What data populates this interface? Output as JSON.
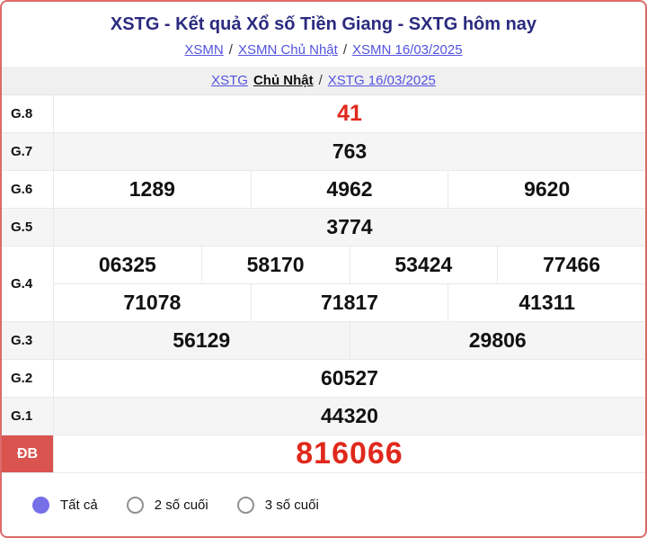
{
  "colors": {
    "card_border": "#dd6a6a",
    "title_navy": "#2b2b80",
    "link_blue": "#5352e0",
    "result_red": "#e0281c",
    "db_label_bg": "#d9534f",
    "row_alt_gray": "#f5f5f5",
    "band_gray": "#f0f0f0",
    "radio_selected": "#756fe8"
  },
  "header": {
    "title": "XSTG - Kết quả Xổ số Tiền Giang - SXTG hôm nay",
    "separator": "/",
    "breadcrumb1": {
      "links": [
        "XSMN",
        "XSMN Chủ Nhật",
        "XSMN 16/03/2025"
      ]
    },
    "breadcrumb2": {
      "link1": "XSTG",
      "current": "Chủ Nhật",
      "link2": "XSTG 16/03/2025"
    }
  },
  "table": {
    "rows": [
      {
        "label": "G.8",
        "cells": [
          "41"
        ]
      },
      {
        "label": "G.7",
        "cells": [
          "763"
        ]
      },
      {
        "label": "G.6",
        "cells": [
          "1289",
          "4962",
          "9620"
        ]
      },
      {
        "label": "G.5",
        "cells": [
          "3774"
        ]
      },
      {
        "label": "G.4",
        "cells_row1": [
          "06325",
          "58170",
          "53424",
          "77466"
        ],
        "cells_row2": [
          "71078",
          "71817",
          "41311"
        ]
      },
      {
        "label": "G.3",
        "cells": [
          "56129",
          "29806"
        ]
      },
      {
        "label": "G.2",
        "cells": [
          "60527"
        ]
      },
      {
        "label": "G.1",
        "cells": [
          "44320"
        ]
      },
      {
        "label": "ĐB",
        "cells": [
          "816066"
        ]
      }
    ]
  },
  "footer": {
    "options": [
      {
        "label": "Tất cả",
        "selected": true
      },
      {
        "label": "2 số cuối",
        "selected": false
      },
      {
        "label": "3 số cuối",
        "selected": false
      }
    ]
  }
}
